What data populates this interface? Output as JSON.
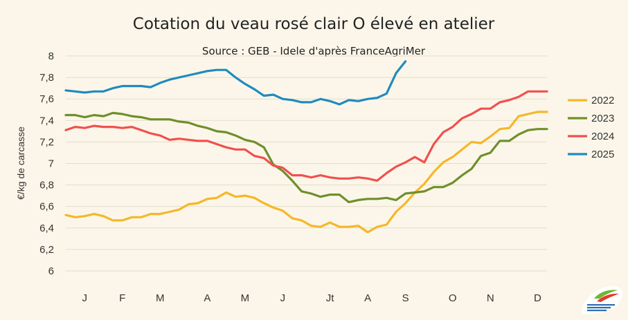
{
  "chart_data": {
    "type": "line",
    "title": "Cotation du veau rosé clair O élevé en atelier",
    "subtitle": "Source : GEB - Idele d'après FranceAgriMer",
    "ylabel": "€/kg de carcasse",
    "ylim": [
      6,
      8
    ],
    "yticks": [
      "8",
      "7,8",
      "7,6",
      "7,4",
      "7,2",
      "7",
      "6,8",
      "6,6",
      "6,4",
      "6,2",
      "6"
    ],
    "ytick_values": [
      8,
      7.8,
      7.6,
      7.4,
      7.2,
      7,
      6.8,
      6.6,
      6.4,
      6.2,
      6
    ],
    "x_range": [
      1,
      52
    ],
    "xlabel": "",
    "month_labels": [
      {
        "label": "J",
        "week": 3
      },
      {
        "label": "F",
        "week": 7
      },
      {
        "label": "M",
        "week": 11
      },
      {
        "label": "A",
        "week": 16
      },
      {
        "label": "M",
        "week": 20
      },
      {
        "label": "J",
        "week": 24
      },
      {
        "label": "Jt",
        "week": 29
      },
      {
        "label": "A",
        "week": 33
      },
      {
        "label": "S",
        "week": 37
      },
      {
        "label": "O",
        "week": 42
      },
      {
        "label": "N",
        "week": 46
      },
      {
        "label": "D",
        "week": 51
      }
    ],
    "grid": "horizontal",
    "legend_position": "right",
    "series": [
      {
        "name": "2022",
        "color": "#f5b729",
        "values": [
          6.52,
          6.5,
          6.51,
          6.53,
          6.51,
          6.47,
          6.47,
          6.5,
          6.5,
          6.53,
          6.53,
          6.55,
          6.57,
          6.62,
          6.63,
          6.67,
          6.68,
          6.73,
          6.69,
          6.7,
          6.68,
          6.63,
          6.59,
          6.56,
          6.49,
          6.47,
          6.42,
          6.41,
          6.45,
          6.41,
          6.41,
          6.42,
          6.36,
          6.41,
          6.43,
          6.55,
          6.63,
          6.73,
          6.81,
          6.92,
          7.01,
          7.06,
          7.13,
          7.2,
          7.19,
          7.25,
          7.32,
          7.33,
          7.44,
          7.46,
          7.48,
          7.48
        ]
      },
      {
        "name": "2023",
        "color": "#6f8f2b",
        "values": [
          7.45,
          7.45,
          7.43,
          7.45,
          7.44,
          7.47,
          7.46,
          7.44,
          7.43,
          7.41,
          7.41,
          7.41,
          7.39,
          7.38,
          7.35,
          7.33,
          7.3,
          7.29,
          7.26,
          7.22,
          7.2,
          7.15,
          6.99,
          6.93,
          6.84,
          6.74,
          6.72,
          6.69,
          6.71,
          6.71,
          6.64,
          6.66,
          6.67,
          6.67,
          6.68,
          6.66,
          6.72,
          6.73,
          6.74,
          6.78,
          6.78,
          6.82,
          6.89,
          6.95,
          7.07,
          7.1,
          7.21,
          7.21,
          7.27,
          7.31,
          7.32,
          7.32
        ]
      },
      {
        "name": "2024",
        "color": "#f0504f",
        "values": [
          7.31,
          7.34,
          7.33,
          7.35,
          7.34,
          7.34,
          7.33,
          7.34,
          7.31,
          7.28,
          7.26,
          7.22,
          7.23,
          7.22,
          7.21,
          7.21,
          7.18,
          7.15,
          7.13,
          7.13,
          7.07,
          7.05,
          6.98,
          6.96,
          6.89,
          6.89,
          6.87,
          6.89,
          6.87,
          6.86,
          6.86,
          6.87,
          6.86,
          6.84,
          6.91,
          6.97,
          7.01,
          7.06,
          7.01,
          7.18,
          7.29,
          7.34,
          7.42,
          7.46,
          7.51,
          7.51,
          7.57,
          7.59,
          7.62,
          7.67,
          7.67,
          7.67
        ]
      },
      {
        "name": "2025",
        "color": "#1f8ac0",
        "values": [
          7.68,
          7.67,
          7.66,
          7.67,
          7.67,
          7.7,
          7.72,
          7.72,
          7.72,
          7.71,
          7.75,
          7.78,
          7.8,
          7.82,
          7.84,
          7.86,
          7.87,
          7.87,
          7.8,
          7.74,
          7.69,
          7.63,
          7.64,
          7.6,
          7.59,
          7.57,
          7.57,
          7.6,
          7.58,
          7.55,
          7.59,
          7.58,
          7.6,
          7.61,
          7.65,
          7.84,
          7.95
        ]
      }
    ]
  }
}
